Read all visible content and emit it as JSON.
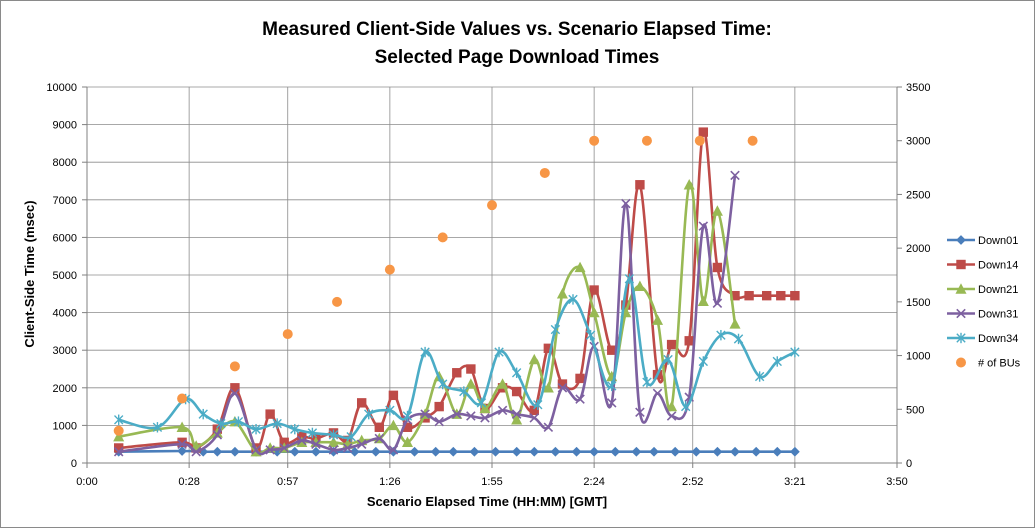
{
  "chart_data": {
    "type": "line",
    "title": "Measured Client-Side Values vs. Scenario Elapsed Time:",
    "subtitle": "Selected Page Download Times",
    "xlabel": "Scenario Elapsed Time (HH:MM) [GMT]",
    "ylabel": "Client-Side Time (msec)",
    "x_unit": "minutes",
    "xlim": [
      0,
      230
    ],
    "x_ticks": [
      0,
      29,
      57,
      86,
      115,
      144,
      172,
      201,
      230
    ],
    "x_tick_labels": [
      "0:00",
      "0:28",
      "0:57",
      "1:26",
      "1:55",
      "2:24",
      "2:52",
      "3:21",
      "3:50"
    ],
    "ylim": [
      0,
      10000
    ],
    "y_ticks": [
      0,
      1000,
      2000,
      3000,
      4000,
      5000,
      6000,
      7000,
      8000,
      9000,
      10000
    ],
    "y2lim": [
      0,
      3500
    ],
    "y2_ticks": [
      0,
      500,
      1000,
      1500,
      2000,
      2500,
      3000,
      3500
    ],
    "grid": true,
    "legend_position": "right",
    "series": [
      {
        "name": "Down01",
        "color": "#4a7ebb",
        "marker": "diamond",
        "axis": "left",
        "x": [
          9,
          27,
          33,
          37,
          42,
          48,
          54,
          59,
          65,
          70,
          76,
          82,
          87,
          93,
          99,
          104,
          110,
          116,
          122,
          127,
          133,
          139,
          144,
          150,
          156,
          161,
          167,
          173,
          179,
          184,
          190,
          196,
          201
        ],
        "y": [
          300,
          320,
          300,
          300,
          300,
          300,
          300,
          300,
          300,
          300,
          300,
          300,
          300,
          300,
          300,
          300,
          300,
          300,
          300,
          300,
          300,
          300,
          300,
          300,
          300,
          300,
          300,
          300,
          300,
          300,
          300,
          300,
          300
        ]
      },
      {
        "name": "Down14",
        "color": "#be4b48",
        "marker": "square",
        "axis": "left",
        "x": [
          9,
          27,
          31,
          37,
          42,
          48,
          52,
          56,
          61,
          65,
          70,
          74,
          78,
          83,
          87,
          91,
          96,
          100,
          105,
          109,
          113,
          118,
          122,
          127,
          131,
          135,
          140,
          144,
          149,
          153,
          157,
          162,
          166,
          171,
          175,
          179,
          184,
          188,
          193,
          197,
          201
        ],
        "y": [
          400,
          550,
          400,
          900,
          2000,
          400,
          1300,
          550,
          700,
          650,
          800,
          600,
          1600,
          950,
          1800,
          950,
          1200,
          1500,
          2400,
          2500,
          1450,
          2000,
          1900,
          1400,
          3050,
          2100,
          2250,
          4600,
          3000,
          4200,
          7400,
          2350,
          3150,
          3250,
          8800,
          5200,
          4450,
          4450,
          4450,
          4450,
          4450
        ]
      },
      {
        "name": "Down21",
        "color": "#98b954",
        "marker": "triangle",
        "axis": "left",
        "x": [
          9,
          27,
          31,
          37,
          42,
          48,
          52,
          56,
          61,
          65,
          70,
          74,
          78,
          83,
          87,
          91,
          96,
          100,
          105,
          109,
          113,
          118,
          122,
          127,
          131,
          135,
          140,
          144,
          149,
          153,
          157,
          162,
          166,
          171,
          175,
          179,
          184
        ],
        "y": [
          700,
          950,
          450,
          800,
          1100,
          300,
          400,
          400,
          550,
          550,
          550,
          500,
          600,
          650,
          1000,
          550,
          1300,
          2300,
          1300,
          2100,
          1450,
          2100,
          1150,
          2750,
          2000,
          4500,
          5200,
          4000,
          2300,
          4000,
          4700,
          3800,
          1500,
          7400,
          4300,
          6700,
          3700
        ]
      },
      {
        "name": "Down31",
        "color": "#7d60a0",
        "marker": "x",
        "axis": "left",
        "x": [
          9,
          27,
          31,
          37,
          42,
          48,
          52,
          56,
          61,
          65,
          70,
          74,
          78,
          83,
          87,
          91,
          96,
          100,
          105,
          109,
          113,
          118,
          122,
          127,
          131,
          135,
          140,
          144,
          149,
          153,
          157,
          162,
          166,
          171,
          175,
          179,
          184
        ],
        "y": [
          300,
          500,
          300,
          750,
          1850,
          350,
          350,
          400,
          600,
          500,
          350,
          400,
          500,
          650,
          350,
          1150,
          1300,
          1100,
          1300,
          1250,
          1200,
          1400,
          1300,
          1200,
          950,
          2000,
          1700,
          3100,
          1600,
          6900,
          1350,
          1850,
          1250,
          1750,
          6300,
          4250,
          7650
        ]
      },
      {
        "name": "Down34",
        "color": "#4bacc6",
        "marker": "star",
        "axis": "left",
        "x": [
          9,
          20,
          28,
          33,
          38,
          43,
          48,
          54,
          59,
          64,
          70,
          75,
          80,
          86,
          91,
          96,
          101,
          107,
          112,
          117,
          122,
          128,
          133,
          138,
          143,
          149,
          154,
          159,
          165,
          170,
          175,
          180,
          185,
          191,
          196,
          201
        ],
        "y": [
          1150,
          950,
          1700,
          1300,
          1050,
          1100,
          900,
          1050,
          900,
          800,
          750,
          700,
          1300,
          1400,
          1250,
          2950,
          2100,
          1900,
          1600,
          2950,
          2400,
          1550,
          3550,
          4350,
          3400,
          2050,
          4900,
          2150,
          2750,
          1500,
          2700,
          3400,
          3300,
          2300,
          2700,
          2950
        ]
      },
      {
        "name": "# of BUs",
        "color": "#f79646",
        "marker": "circle",
        "axis": "right",
        "line": false,
        "x": [
          9,
          27,
          42,
          57,
          71,
          86,
          101,
          115,
          130,
          144,
          159,
          174,
          189
        ],
        "y": [
          300,
          600,
          900,
          1200,
          1500,
          1800,
          2100,
          2400,
          2700,
          3000,
          3000,
          3000,
          3000
        ]
      }
    ]
  }
}
